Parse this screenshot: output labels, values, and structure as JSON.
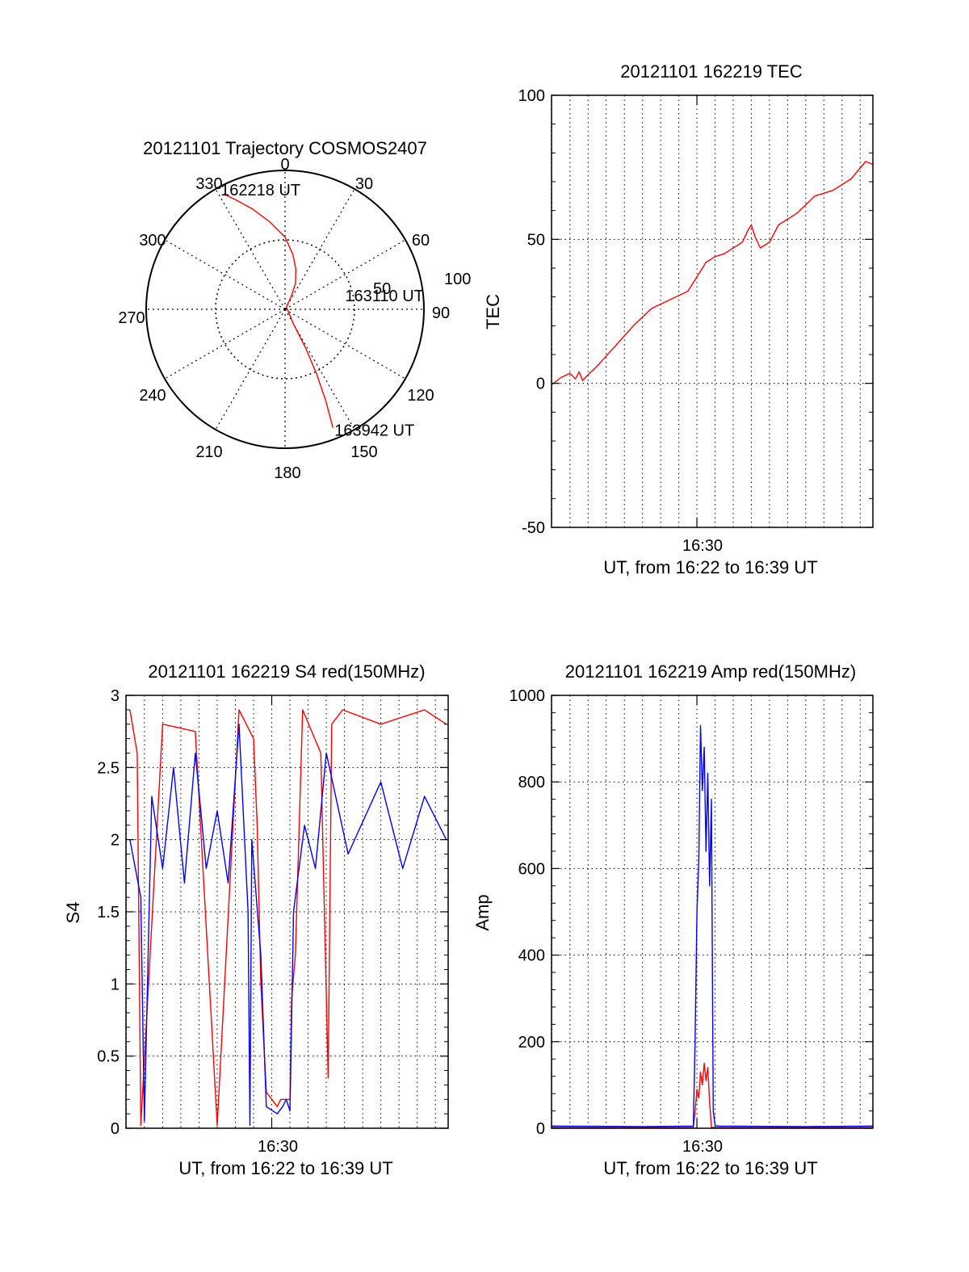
{
  "colors": {
    "red_channel": "#ff0000",
    "blue_channel": "#0000ff",
    "axes": "#000000",
    "grid": "#000000"
  },
  "chart_data": [
    {
      "type": "polar",
      "title": "20121101 Trajectory COSMOS2407",
      "angle_labels": [
        "0",
        "30",
        "60",
        "90",
        "120",
        "150",
        "180",
        "210",
        "240",
        "270",
        "300",
        "330"
      ],
      "radius_labels": [
        "50",
        "100"
      ],
      "track": {
        "azimuth_deg": [
          332,
          336,
          342,
          350,
          360,
          8,
          15,
          22,
          26,
          30,
          150,
          152,
          154,
          156,
          158
        ],
        "zenith_deg": [
          94,
          86,
          76,
          64,
          52,
          40,
          30,
          20,
          10,
          2,
          12,
          32,
          52,
          72,
          92
        ]
      },
      "annotations": [
        {
          "label": "162218 UT",
          "az": 332,
          "r": 94
        },
        {
          "label": "163110 UT",
          "az": 90,
          "r": 20
        },
        {
          "label": "163942 UT",
          "az": 158,
          "r": 92
        }
      ],
      "grid": true
    },
    {
      "type": "line",
      "title": "20121101 162219 TEC",
      "xlabel": "UT, from 16:22 to 16:39 UT",
      "ylabel": "TEC",
      "xlim": [
        16.3664,
        16.6617
      ],
      "ylim": [
        -50,
        100
      ],
      "yticks": [
        "100",
        "50",
        "0",
        "-50"
      ],
      "xtick_label": "16:30",
      "xtick_at": 16.5,
      "grid": true,
      "series": [
        {
          "color": "#ff0000",
          "x": [
            16.3664,
            16.375,
            16.3833,
            16.3883,
            16.3917,
            16.395,
            16.4,
            16.4083,
            16.425,
            16.4417,
            16.4583,
            16.475,
            16.4917,
            16.5,
            16.5083,
            16.5167,
            16.525,
            16.5417,
            16.5467,
            16.55,
            16.5533,
            16.5583,
            16.5667,
            16.575,
            16.5917,
            16.6083,
            16.625,
            16.6417,
            16.655,
            16.6617
          ],
          "y": [
            -0.5,
            2,
            3.5,
            1.5,
            4,
            1,
            3,
            6,
            13,
            20,
            26,
            29,
            32,
            37,
            42,
            44,
            45,
            49,
            53,
            55,
            51,
            47,
            49,
            55,
            59,
            65,
            67,
            71,
            77,
            76
          ]
        }
      ]
    },
    {
      "type": "line",
      "title": "20121101 162219 S4 red(150MHz)",
      "xlabel": "UT, from 16:22 to 16:39 UT",
      "ylabel": "S4",
      "xlim": [
        16.3664,
        16.6617
      ],
      "ylim": [
        0,
        3
      ],
      "yticks": [
        "3",
        "2.5",
        "2",
        "1.5",
        "1",
        "0.5",
        "0"
      ],
      "xtick_label": "16:30",
      "xtick_at": 16.5,
      "grid": true,
      "series": [
        {
          "color": "#ff0000",
          "x": [
            16.37,
            16.3767,
            16.38,
            16.4,
            16.43,
            16.45,
            16.47,
            16.4833,
            16.4867,
            16.49,
            16.495,
            16.505,
            16.5083,
            16.5133,
            16.5167,
            16.5183,
            16.5217,
            16.5283,
            16.545,
            16.5517,
            16.555,
            16.565,
            16.6,
            16.64,
            16.66
          ],
          "y": [
            2.9,
            2.6,
            0.02,
            2.8,
            2.75,
            0.02,
            2.9,
            2.7,
            2.1,
            1.0,
            0.25,
            0.15,
            0.2,
            0.2,
            0.2,
            0.9,
            1.2,
            2.9,
            2.6,
            0.35,
            2.8,
            2.9,
            2.8,
            2.9,
            2.8
          ]
        },
        {
          "color": "#0000ff",
          "x": [
            16.37,
            16.38,
            16.3833,
            16.39,
            16.4,
            16.41,
            16.42,
            16.43,
            16.44,
            16.45,
            16.46,
            16.47,
            16.4783,
            16.48,
            16.4817,
            16.49,
            16.495,
            16.505,
            16.51,
            16.5133,
            16.5167,
            16.52,
            16.53,
            16.54,
            16.55,
            16.57,
            16.6,
            16.62,
            16.64,
            16.66
          ],
          "y": [
            2.0,
            1.6,
            0.05,
            2.3,
            1.8,
            2.5,
            1.7,
            2.6,
            1.8,
            2.2,
            1.7,
            2.8,
            1.5,
            0.02,
            2.0,
            1.2,
            0.15,
            0.1,
            0.15,
            0.2,
            0.12,
            1.5,
            2.1,
            1.8,
            2.6,
            1.9,
            2.4,
            1.8,
            2.3,
            2.0
          ]
        }
      ]
    },
    {
      "type": "line",
      "title": "20121101 162219 Amp red(150MHz)",
      "xlabel": "UT, from 16:22 to 16:39 UT",
      "ylabel": "Amp",
      "xlim": [
        16.3664,
        16.6617
      ],
      "ylim": [
        0,
        1000
      ],
      "yticks": [
        "1000",
        "800",
        "600",
        "400",
        "200",
        "0"
      ],
      "xtick_label": "16:30",
      "xtick_at": 16.5,
      "grid": true,
      "series": [
        {
          "color": "#ff0000",
          "x": [
            16.3664,
            16.4967,
            16.4983,
            16.5,
            16.5017,
            16.5033,
            16.505,
            16.5067,
            16.5083,
            16.51,
            16.5117,
            16.5133,
            16.6617
          ],
          "y": [
            2,
            2,
            40,
            90,
            70,
            130,
            100,
            150,
            110,
            140,
            60,
            2,
            2
          ]
        },
        {
          "color": "#0000ff",
          "x": [
            16.3664,
            16.45,
            16.4967,
            16.4983,
            16.5,
            16.5017,
            16.5033,
            16.505,
            16.5067,
            16.5083,
            16.51,
            16.5117,
            16.5133,
            16.515,
            16.5167,
            16.52,
            16.6,
            16.6617
          ],
          "y": [
            5,
            4,
            5,
            200,
            500,
            620,
            930,
            780,
            880,
            640,
            820,
            560,
            760,
            40,
            6,
            5,
            4,
            5
          ]
        }
      ]
    }
  ]
}
